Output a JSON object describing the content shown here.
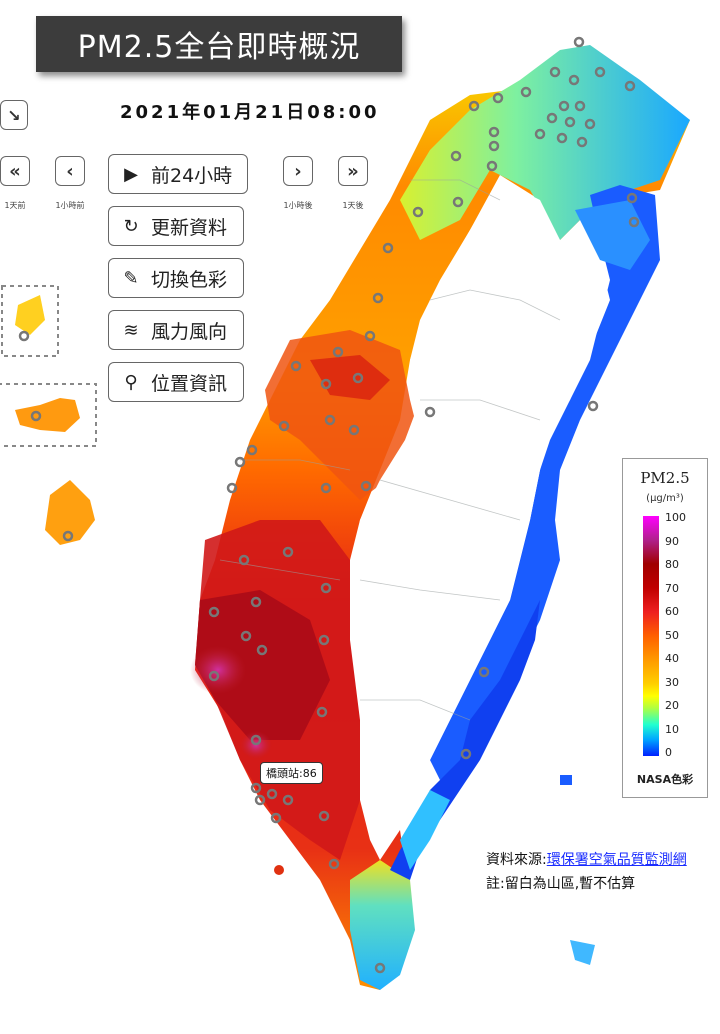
{
  "title": "PM2.5全台即時概況",
  "datetime": "2021年01月21日08:00",
  "nav": {
    "prev_day": {
      "icon": "«",
      "caption": "1天前"
    },
    "prev_hour": {
      "icon": "‹",
      "caption": "1小時前"
    },
    "next_hour": {
      "icon": "›",
      "caption": "1小時後"
    },
    "next_day": {
      "icon": "»",
      "caption": "1天後"
    }
  },
  "actions": {
    "past24": "前24小時",
    "refresh": "更新資料",
    "color": "切換色彩",
    "wind": "風力風向",
    "location": "位置資訊"
  },
  "legend": {
    "title": "PM2.5",
    "unit": "(μg/m³)",
    "ticks": [
      "100",
      "90",
      "80",
      "70",
      "60",
      "50",
      "40",
      "30",
      "20",
      "10",
      "0"
    ],
    "name": "NASA色彩"
  },
  "station_callout": "橋頭站:86",
  "source": {
    "label": "資料來源:",
    "link": "環保署空氣品質監測網",
    "note": "註:留白為山區,暫不估算"
  },
  "colors": {
    "blue": "#1560ff",
    "cyan": "#2ad0ff",
    "yellow": "#f6f000",
    "orange": "#ff8a00",
    "red": "#e52015",
    "darkred": "#b00010",
    "magenta": "#c0208f"
  }
}
